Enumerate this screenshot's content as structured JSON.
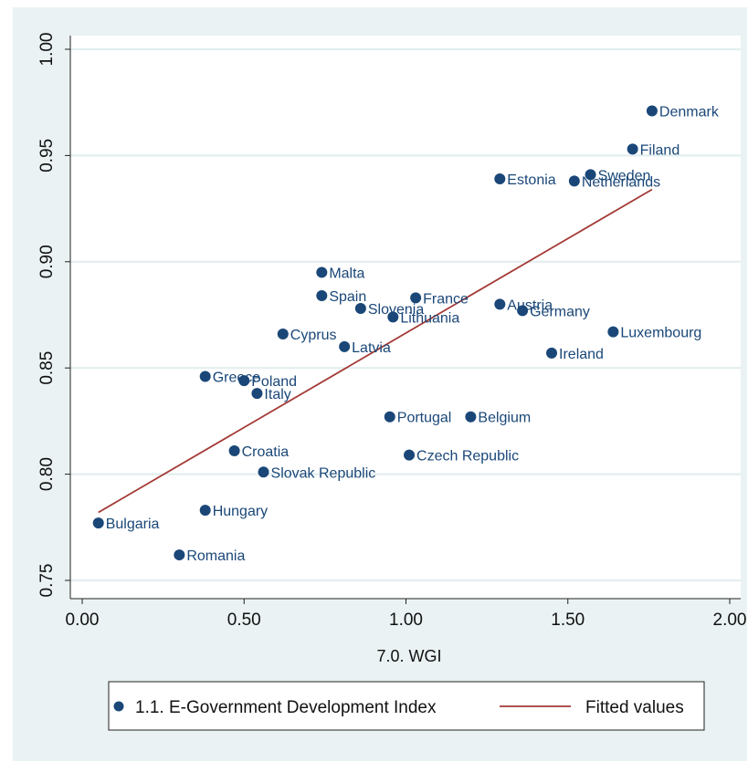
{
  "chart_data": {
    "type": "scatter",
    "xlabel": "7.0. WGI",
    "ylabel": "",
    "xlim": [
      0,
      2
    ],
    "ylim": [
      0.75,
      1.0
    ],
    "x_ticks": [
      {
        "v": 0.0,
        "label": "0.00"
      },
      {
        "v": 0.5,
        "label": "0.50"
      },
      {
        "v": 1.0,
        "label": "1.00"
      },
      {
        "v": 1.5,
        "label": "1.50"
      },
      {
        "v": 2.0,
        "label": "2.00"
      }
    ],
    "y_ticks": [
      {
        "v": 0.75,
        "label": "0.75"
      },
      {
        "v": 0.8,
        "label": "0.80"
      },
      {
        "v": 0.85,
        "label": "0.85"
      },
      {
        "v": 0.9,
        "label": "0.90"
      },
      {
        "v": 0.95,
        "label": "0.95"
      },
      {
        "v": 1.0,
        "label": "1.00"
      }
    ],
    "grid": true,
    "legend_position": "bottom",
    "colors": {
      "marker": "#1a4778",
      "fit": "#a33a36",
      "grid": "#e3eeef",
      "background": "#eaf2f3",
      "plot": "#ffffff"
    },
    "series": [
      {
        "name": "1.1. E-Government Development Index",
        "points": [
          {
            "label": "Bulgaria",
            "x": 0.05,
            "y": 0.777
          },
          {
            "label": "Romania",
            "x": 0.3,
            "y": 0.762
          },
          {
            "label": "Hungary",
            "x": 0.38,
            "y": 0.783
          },
          {
            "label": "Greece",
            "x": 0.38,
            "y": 0.846
          },
          {
            "label": "Poland",
            "x": 0.5,
            "y": 0.844
          },
          {
            "label": "Italy",
            "x": 0.54,
            "y": 0.838
          },
          {
            "label": "Croatia",
            "x": 0.47,
            "y": 0.811
          },
          {
            "label": "Slovak Republic",
            "x": 0.56,
            "y": 0.801
          },
          {
            "label": "Cyprus",
            "x": 0.62,
            "y": 0.866
          },
          {
            "label": "Malta",
            "x": 0.74,
            "y": 0.895
          },
          {
            "label": "Spain",
            "x": 0.74,
            "y": 0.884
          },
          {
            "label": "Latvia",
            "x": 0.81,
            "y": 0.86
          },
          {
            "label": "Slovenia",
            "x": 0.86,
            "y": 0.878
          },
          {
            "label": "Lithuania",
            "x": 0.96,
            "y": 0.874
          },
          {
            "label": "France",
            "x": 1.03,
            "y": 0.883
          },
          {
            "label": "Portugal",
            "x": 0.95,
            "y": 0.827
          },
          {
            "label": "Czech Republic",
            "x": 1.01,
            "y": 0.809
          },
          {
            "label": "Belgium",
            "x": 1.2,
            "y": 0.827
          },
          {
            "label": "Estonia",
            "x": 1.29,
            "y": 0.939
          },
          {
            "label": "Austria",
            "x": 1.29,
            "y": 0.88
          },
          {
            "label": "Germany",
            "x": 1.36,
            "y": 0.877
          },
          {
            "label": "Ireland",
            "x": 1.45,
            "y": 0.857
          },
          {
            "label": "Netherlands",
            "x": 1.52,
            "y": 0.938
          },
          {
            "label": "Sweden",
            "x": 1.57,
            "y": 0.941
          },
          {
            "label": "Luxembourg",
            "x": 1.64,
            "y": 0.867
          },
          {
            "label": "Filand",
            "x": 1.7,
            "y": 0.953
          },
          {
            "label": "Denmark",
            "x": 1.76,
            "y": 0.971
          }
        ]
      },
      {
        "name": "Fitted values",
        "line": [
          {
            "x": 0.05,
            "y": 0.782
          },
          {
            "x": 1.76,
            "y": 0.934
          }
        ]
      }
    ]
  }
}
